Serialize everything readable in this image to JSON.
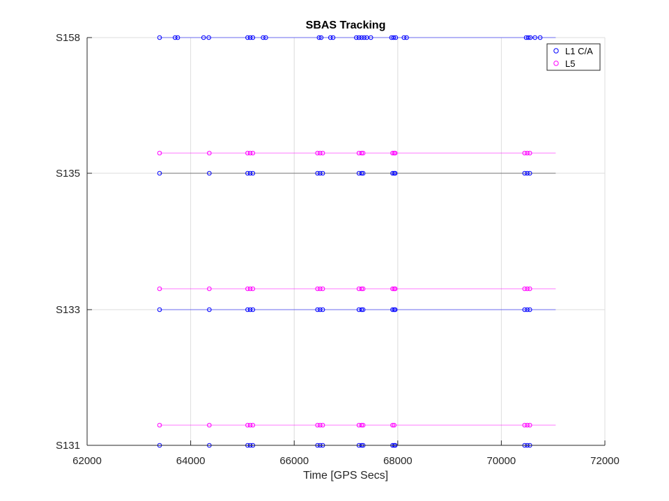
{
  "chart_data": {
    "type": "scatter",
    "title": "SBAS Tracking",
    "xlabel": "Time [GPS Secs]",
    "ylabel": "",
    "xlim": [
      62000,
      72000
    ],
    "xticks": [
      62000,
      64000,
      66000,
      68000,
      70000,
      72000
    ],
    "xtick_labels": [
      "62000",
      "64000",
      "66000",
      "68000",
      "70000",
      "72000"
    ],
    "ytick_labels": [
      "S131",
      "S133",
      "S135",
      "S158"
    ],
    "grid": true,
    "legend": {
      "placement": "top-right",
      "entries": [
        "L1 C/A",
        "L5"
      ]
    },
    "colors": {
      "L1 C/A": "#0000ff",
      "L5": "#ff00ff"
    },
    "line_range": [
      63400,
      71050
    ],
    "series": [
      {
        "name": "L1 C/A",
        "satellite": "S131",
        "points": [
          63400,
          64360,
          65100,
          65150,
          65200,
          66450,
          66500,
          66550,
          67250,
          67300,
          67330,
          67900,
          67930,
          67950,
          70450,
          70500,
          70550
        ]
      },
      {
        "name": "L5",
        "satellite": "S131",
        "points": [
          63400,
          64360,
          65100,
          65150,
          65200,
          66450,
          66500,
          66550,
          67250,
          67300,
          67330,
          67900,
          67930,
          70450,
          70500,
          70550
        ]
      },
      {
        "name": "L1 C/A",
        "satellite": "S133",
        "points": [
          63400,
          64360,
          65100,
          65150,
          65200,
          66450,
          66500,
          66550,
          67250,
          67300,
          67330,
          67900,
          67930,
          67950,
          70450,
          70500,
          70550
        ]
      },
      {
        "name": "L5",
        "satellite": "S133",
        "points": [
          63400,
          64360,
          65100,
          65150,
          65200,
          66450,
          66500,
          66550,
          67250,
          67300,
          67330,
          67900,
          67930,
          67950,
          70450,
          70500,
          70550
        ]
      },
      {
        "name": "L1 C/A",
        "satellite": "S135",
        "points": [
          63400,
          64360,
          65100,
          65150,
          65200,
          66450,
          66500,
          66550,
          67250,
          67300,
          67330,
          67900,
          67930,
          67950,
          70450,
          70500,
          70550
        ]
      },
      {
        "name": "L5",
        "satellite": "S135",
        "points": [
          63400,
          64360,
          65100,
          65150,
          65200,
          66450,
          66500,
          66550,
          67250,
          67300,
          67330,
          67900,
          67930,
          67950,
          70450,
          70500,
          70550
        ]
      },
      {
        "name": "L1 C/A",
        "satellite": "S158",
        "points": [
          63400,
          63700,
          63750,
          64250,
          64350,
          65100,
          65150,
          65200,
          65400,
          65450,
          66480,
          66520,
          66700,
          66750,
          67200,
          67250,
          67300,
          67350,
          67400,
          67480,
          67880,
          67920,
          67960,
          68120,
          68170,
          70480,
          70520,
          70560,
          70650,
          70750
        ]
      }
    ]
  }
}
